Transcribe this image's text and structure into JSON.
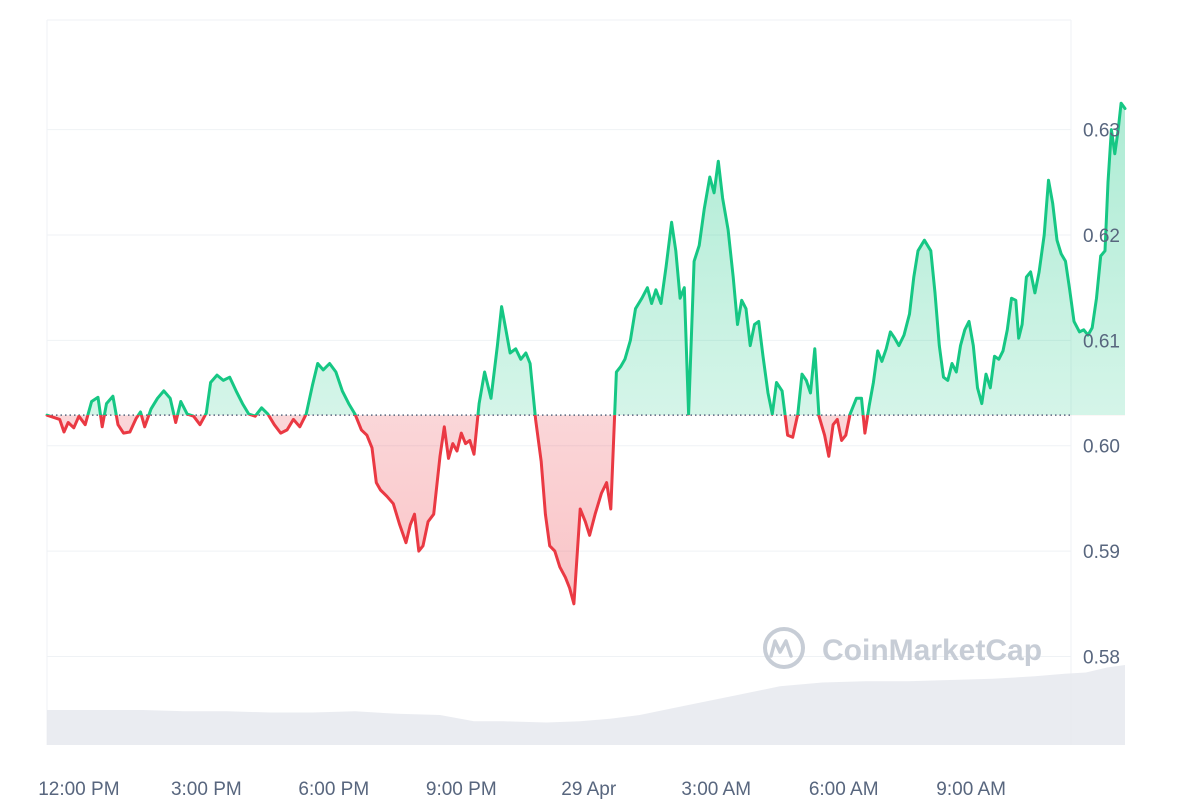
{
  "chart_data": {
    "type": "area",
    "baseline": 0.6029,
    "y_ticks": [
      "0.63",
      "0.62",
      "0.61",
      "0.60",
      "0.59",
      "0.58"
    ],
    "y_tick_values": [
      0.63,
      0.62,
      0.61,
      0.6,
      0.59,
      0.58
    ],
    "ylim": [
      0.5716,
      0.6404
    ],
    "x_ticks": [
      "12:00 PM",
      "3:00 PM",
      "6:00 PM",
      "9:00 PM",
      "29 Apr",
      "3:00 AM",
      "6:00 AM",
      "9:00 AM"
    ],
    "x_tick_hours": [
      0,
      3,
      6,
      9,
      12,
      15,
      18,
      21
    ],
    "xlim_hours": [
      -0.75,
      23.35
    ],
    "grid": true,
    "legend": "none",
    "watermark": "CoinMarketCap",
    "price_series": {
      "name": "",
      "points": [
        [
          -0.75,
          0.6029
        ],
        [
          -0.6,
          0.6027
        ],
        [
          -0.45,
          0.6025
        ],
        [
          -0.35,
          0.6013
        ],
        [
          -0.25,
          0.6022
        ],
        [
          -0.12,
          0.6017
        ],
        [
          0.0,
          0.6028
        ],
        [
          0.15,
          0.602
        ],
        [
          0.3,
          0.6042
        ],
        [
          0.45,
          0.6046
        ],
        [
          0.55,
          0.6018
        ],
        [
          0.65,
          0.604
        ],
        [
          0.8,
          0.6047
        ],
        [
          0.92,
          0.602
        ],
        [
          1.05,
          0.6012
        ],
        [
          1.2,
          0.6013
        ],
        [
          1.35,
          0.6026
        ],
        [
          1.45,
          0.6032
        ],
        [
          1.55,
          0.6018
        ],
        [
          1.7,
          0.6035
        ],
        [
          1.85,
          0.6045
        ],
        [
          2.0,
          0.6052
        ],
        [
          2.15,
          0.6045
        ],
        [
          2.28,
          0.6022
        ],
        [
          2.4,
          0.6042
        ],
        [
          2.55,
          0.603
        ],
        [
          2.7,
          0.6028
        ],
        [
          2.85,
          0.602
        ],
        [
          3.0,
          0.6031
        ],
        [
          3.1,
          0.606
        ],
        [
          3.25,
          0.6067
        ],
        [
          3.4,
          0.6062
        ],
        [
          3.55,
          0.6065
        ],
        [
          3.7,
          0.6052
        ],
        [
          3.85,
          0.604
        ],
        [
          4.0,
          0.603
        ],
        [
          4.15,
          0.6028
        ],
        [
          4.3,
          0.6036
        ],
        [
          4.45,
          0.603
        ],
        [
          4.6,
          0.602
        ],
        [
          4.75,
          0.6012
        ],
        [
          4.9,
          0.6015
        ],
        [
          5.05,
          0.6025
        ],
        [
          5.2,
          0.6018
        ],
        [
          5.35,
          0.603
        ],
        [
          5.5,
          0.6058
        ],
        [
          5.62,
          0.6078
        ],
        [
          5.75,
          0.6072
        ],
        [
          5.9,
          0.6078
        ],
        [
          6.05,
          0.607
        ],
        [
          6.2,
          0.6052
        ],
        [
          6.35,
          0.604
        ],
        [
          6.5,
          0.603
        ],
        [
          6.65,
          0.6015
        ],
        [
          6.78,
          0.601
        ],
        [
          6.9,
          0.5998
        ],
        [
          7.0,
          0.5965
        ],
        [
          7.1,
          0.5958
        ],
        [
          7.25,
          0.5952
        ],
        [
          7.4,
          0.5945
        ],
        [
          7.55,
          0.5925
        ],
        [
          7.7,
          0.5908
        ],
        [
          7.8,
          0.5925
        ],
        [
          7.9,
          0.5935
        ],
        [
          8.0,
          0.59
        ],
        [
          8.1,
          0.5905
        ],
        [
          8.22,
          0.5928
        ],
        [
          8.35,
          0.5935
        ],
        [
          8.5,
          0.599
        ],
        [
          8.6,
          0.6018
        ],
        [
          8.7,
          0.5988
        ],
        [
          8.8,
          0.6002
        ],
        [
          8.9,
          0.5995
        ],
        [
          9.0,
          0.6012
        ],
        [
          9.1,
          0.6002
        ],
        [
          9.2,
          0.6005
        ],
        [
          9.3,
          0.5992
        ],
        [
          9.42,
          0.604
        ],
        [
          9.55,
          0.607
        ],
        [
          9.7,
          0.6045
        ],
        [
          9.85,
          0.6095
        ],
        [
          9.95,
          0.6132
        ],
        [
          10.05,
          0.611
        ],
        [
          10.15,
          0.6088
        ],
        [
          10.28,
          0.6092
        ],
        [
          10.4,
          0.6082
        ],
        [
          10.52,
          0.6088
        ],
        [
          10.62,
          0.6078
        ],
        [
          10.75,
          0.6025
        ],
        [
          10.88,
          0.5985
        ],
        [
          10.98,
          0.5935
        ],
        [
          11.08,
          0.5905
        ],
        [
          11.2,
          0.59
        ],
        [
          11.32,
          0.5885
        ],
        [
          11.45,
          0.5875
        ],
        [
          11.55,
          0.5865
        ],
        [
          11.65,
          0.585
        ],
        [
          11.8,
          0.594
        ],
        [
          11.92,
          0.5928
        ],
        [
          12.02,
          0.5915
        ],
        [
          12.15,
          0.5935
        ],
        [
          12.3,
          0.5955
        ],
        [
          12.42,
          0.5965
        ],
        [
          12.52,
          0.594
        ],
        [
          12.65,
          0.607
        ],
        [
          12.75,
          0.6075
        ],
        [
          12.85,
          0.6082
        ],
        [
          12.98,
          0.61
        ],
        [
          13.1,
          0.613
        ],
        [
          13.25,
          0.614
        ],
        [
          13.38,
          0.615
        ],
        [
          13.48,
          0.6135
        ],
        [
          13.58,
          0.6148
        ],
        [
          13.7,
          0.6135
        ],
        [
          13.82,
          0.617
        ],
        [
          13.95,
          0.6212
        ],
        [
          14.05,
          0.6185
        ],
        [
          14.15,
          0.614
        ],
        [
          14.25,
          0.615
        ],
        [
          14.35,
          0.603
        ],
        [
          14.48,
          0.6175
        ],
        [
          14.6,
          0.619
        ],
        [
          14.72,
          0.6225
        ],
        [
          14.85,
          0.6255
        ],
        [
          14.95,
          0.624
        ],
        [
          15.05,
          0.627
        ],
        [
          15.15,
          0.6235
        ],
        [
          15.28,
          0.6205
        ],
        [
          15.4,
          0.616
        ],
        [
          15.5,
          0.6115
        ],
        [
          15.6,
          0.6138
        ],
        [
          15.7,
          0.613
        ],
        [
          15.8,
          0.6095
        ],
        [
          15.9,
          0.6115
        ],
        [
          16.0,
          0.6118
        ],
        [
          16.1,
          0.6085
        ],
        [
          16.22,
          0.605
        ],
        [
          16.32,
          0.603
        ],
        [
          16.42,
          0.606
        ],
        [
          16.55,
          0.6052
        ],
        [
          16.68,
          0.601
        ],
        [
          16.8,
          0.6008
        ],
        [
          16.92,
          0.603
        ],
        [
          17.02,
          0.6068
        ],
        [
          17.12,
          0.6062
        ],
        [
          17.22,
          0.605
        ],
        [
          17.32,
          0.6092
        ],
        [
          17.42,
          0.6028
        ],
        [
          17.55,
          0.601
        ],
        [
          17.65,
          0.599
        ],
        [
          17.75,
          0.602
        ],
        [
          17.85,
          0.6025
        ],
        [
          17.95,
          0.6005
        ],
        [
          18.05,
          0.601
        ],
        [
          18.15,
          0.603
        ],
        [
          18.3,
          0.6045
        ],
        [
          18.42,
          0.6045
        ],
        [
          18.5,
          0.6012
        ],
        [
          18.6,
          0.6038
        ],
        [
          18.7,
          0.606
        ],
        [
          18.8,
          0.609
        ],
        [
          18.9,
          0.608
        ],
        [
          19.0,
          0.6092
        ],
        [
          19.1,
          0.6108
        ],
        [
          19.2,
          0.6102
        ],
        [
          19.3,
          0.6095
        ],
        [
          19.42,
          0.6105
        ],
        [
          19.55,
          0.6125
        ],
        [
          19.65,
          0.616
        ],
        [
          19.75,
          0.6185
        ],
        [
          19.9,
          0.6195
        ],
        [
          20.05,
          0.6185
        ],
        [
          20.15,
          0.6145
        ],
        [
          20.25,
          0.6095
        ],
        [
          20.35,
          0.6065
        ],
        [
          20.45,
          0.6062
        ],
        [
          20.55,
          0.6078
        ],
        [
          20.65,
          0.607
        ],
        [
          20.75,
          0.6095
        ],
        [
          20.85,
          0.611
        ],
        [
          20.95,
          0.6118
        ],
        [
          21.05,
          0.6095
        ],
        [
          21.15,
          0.6055
        ],
        [
          21.25,
          0.604
        ],
        [
          21.35,
          0.6068
        ],
        [
          21.45,
          0.6055
        ],
        [
          21.55,
          0.6085
        ],
        [
          21.65,
          0.6082
        ],
        [
          21.75,
          0.609
        ],
        [
          21.85,
          0.611
        ],
        [
          21.95,
          0.614
        ],
        [
          22.05,
          0.6138
        ],
        [
          22.12,
          0.6102
        ],
        [
          22.2,
          0.6115
        ],
        [
          22.3,
          0.616
        ],
        [
          22.4,
          0.6165
        ],
        [
          22.5,
          0.6145
        ],
        [
          22.6,
          0.6165
        ],
        [
          22.72,
          0.62
        ],
        [
          22.82,
          0.6252
        ],
        [
          22.92,
          0.623
        ],
        [
          23.02,
          0.6195
        ],
        [
          23.12,
          0.6182
        ],
        [
          23.22,
          0.6175
        ],
        [
          23.32,
          0.6148
        ],
        [
          23.42,
          0.6118
        ],
        [
          23.55,
          0.6108
        ],
        [
          23.65,
          0.611
        ],
        [
          23.75,
          0.6105
        ],
        [
          23.85,
          0.6112
        ],
        [
          23.95,
          0.614
        ],
        [
          24.05,
          0.618
        ],
        [
          24.15,
          0.6185
        ],
        [
          24.22,
          0.625
        ],
        [
          24.3,
          0.63
        ],
        [
          24.38,
          0.6277
        ],
        [
          24.46,
          0.63
        ],
        [
          24.53,
          0.6325
        ],
        [
          24.62,
          0.632
        ]
      ]
    },
    "volume_series": {
      "name": "",
      "points": [
        [
          -0.75,
          0.28
        ],
        [
          1.5,
          0.28
        ],
        [
          2.5,
          0.27
        ],
        [
          3.5,
          0.27
        ],
        [
          4.5,
          0.26
        ],
        [
          5.5,
          0.26
        ],
        [
          6.5,
          0.27
        ],
        [
          7.5,
          0.25
        ],
        [
          8.5,
          0.24
        ],
        [
          9.3,
          0.19
        ],
        [
          10.0,
          0.19
        ],
        [
          11.0,
          0.18
        ],
        [
          11.8,
          0.19
        ],
        [
          12.5,
          0.21
        ],
        [
          13.2,
          0.24
        ],
        [
          14.2,
          0.31
        ],
        [
          15.5,
          0.4
        ],
        [
          16.5,
          0.47
        ],
        [
          17.5,
          0.5
        ],
        [
          18.5,
          0.51
        ],
        [
          19.5,
          0.51
        ],
        [
          20.5,
          0.52
        ],
        [
          21.5,
          0.53
        ],
        [
          22.5,
          0.55
        ],
        [
          23.2,
          0.57
        ],
        [
          23.7,
          0.58
        ],
        [
          24.2,
          0.62
        ],
        [
          24.62,
          0.64
        ]
      ]
    },
    "colors": {
      "up": "#16c784",
      "down": "#ea3943",
      "grid": "#eff2f5",
      "baseline": "#58667e",
      "volume": "#e6e9ef",
      "tick_text": "#58667e",
      "watermark": "#c7cdd6"
    }
  }
}
